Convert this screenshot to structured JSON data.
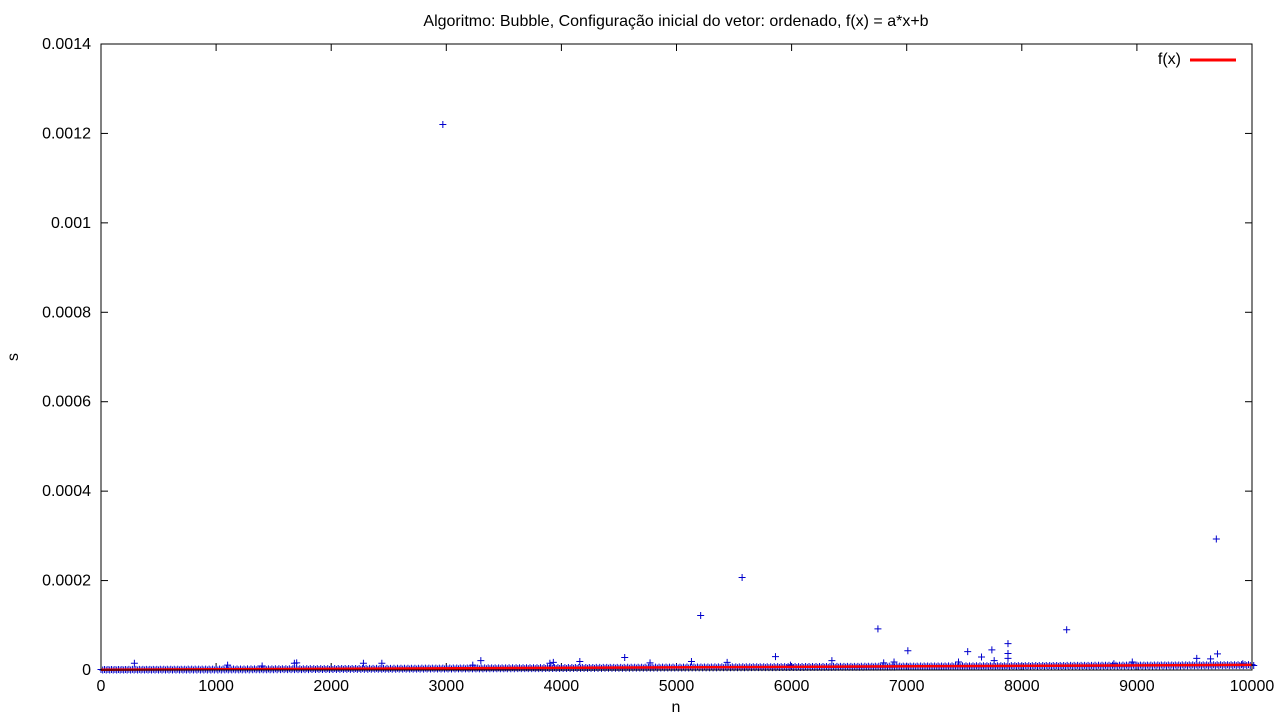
{
  "chart_data": {
    "type": "scatter",
    "title": "Algoritmo: Bubble, Configuração inicial do vetor: ordenado, f(x) = a*x+b",
    "xlabel": "n",
    "ylabel": "s",
    "xlim": [
      0,
      10000
    ],
    "ylim": [
      0,
      0.0014
    ],
    "x_ticks": [
      0,
      1000,
      2000,
      3000,
      4000,
      5000,
      6000,
      7000,
      8000,
      9000,
      10000
    ],
    "x_tick_labels": [
      "0",
      "1000",
      "2000",
      "3000",
      "4000",
      "5000",
      "6000",
      "7000",
      "8000",
      "9000",
      "10000"
    ],
    "y_ticks": [
      0,
      0.0002,
      0.0004,
      0.0006,
      0.0008,
      0.001,
      0.0012,
      0.0014
    ],
    "y_tick_labels": [
      "0",
      "0.0002",
      "0.0004",
      "0.0006",
      "0.0008",
      "0.001",
      "0.0012",
      "0.0014"
    ],
    "grid": false,
    "legend": {
      "position": "top-right",
      "entries": [
        {
          "label": "f(x)",
          "color": "#ff0000"
        }
      ]
    },
    "series": [
      {
        "kind": "points",
        "color": "#0000cc",
        "marker": "plus",
        "baseline_trend": {
          "x": [
            0,
            10000
          ],
          "y": [
            1e-06,
            1.2e-05
          ]
        },
        "outliers": [
          [
            290,
            1.5e-05
          ],
          [
            1100,
            1.1e-05
          ],
          [
            1400,
            9e-06
          ],
          [
            1680,
            1.5e-05
          ],
          [
            1700,
            1.6e-05
          ],
          [
            2280,
            1.5e-05
          ],
          [
            2440,
            1.5e-05
          ],
          [
            2970,
            0.00122
          ],
          [
            3230,
            1.1e-05
          ],
          [
            3300,
            2.1e-05
          ],
          [
            3900,
            1.5e-05
          ],
          [
            3930,
            1.7e-05
          ],
          [
            4160,
            1.9e-05
          ],
          [
            4550,
            2.8e-05
          ],
          [
            4770,
            1.6e-05
          ],
          [
            5130,
            1.9e-05
          ],
          [
            5210,
            0.000122
          ],
          [
            5440,
            1.7e-05
          ],
          [
            5570,
            0.000207
          ],
          [
            5860,
            3e-05
          ],
          [
            5990,
            1.1e-05
          ],
          [
            6350,
            2.1e-05
          ],
          [
            6750,
            9.2e-05
          ],
          [
            6800,
            1.6e-05
          ],
          [
            6890,
            1.8e-05
          ],
          [
            7010,
            4.3e-05
          ],
          [
            7450,
            1.8e-05
          ],
          [
            7530,
            4.1e-05
          ],
          [
            7650,
            2.9e-05
          ],
          [
            7740,
            4.5e-05
          ],
          [
            7760,
            2.1e-05
          ],
          [
            7880,
            5.9e-05
          ],
          [
            7880,
            3.7e-05
          ],
          [
            7880,
            2.6e-05
          ],
          [
            8390,
            9e-05
          ],
          [
            8800,
            1.4e-05
          ],
          [
            8960,
            1.8e-05
          ],
          [
            9520,
            2.6e-05
          ],
          [
            9640,
            2.5e-05
          ],
          [
            9690,
            0.000293
          ],
          [
            9700,
            3.6e-05
          ],
          [
            9920,
            1.4e-05
          ]
        ]
      },
      {
        "kind": "line",
        "name": "f(x)",
        "color": "#ff0000",
        "x": [
          0,
          10000
        ],
        "y": [
          5e-07,
          1.15e-05
        ]
      }
    ]
  }
}
